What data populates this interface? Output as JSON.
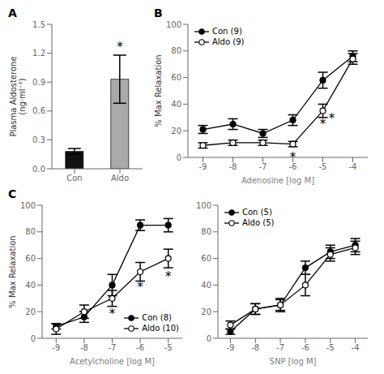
{
  "chart_data": [
    {
      "type": "bar",
      "title": "A",
      "categories": [
        "Con",
        "Aldo"
      ],
      "values": [
        0.18,
        0.93
      ],
      "errors": [
        0.03,
        0.25
      ],
      "colors": [
        "#111111",
        "#aaaaaa"
      ],
      "ylabel": "Plasma Aldosterone\n(ng·ml⁻¹)",
      "ylim": [
        0,
        1.5
      ],
      "yticks": [
        {
          "value": 0,
          "label": "0.0"
        },
        0.3,
        0.6,
        0.9,
        1.2,
        1.5
      ],
      "annotations": [
        {
          "x": "Aldo",
          "y": 1.22,
          "text": "*"
        }
      ]
    },
    {
      "type": "line",
      "title": "B",
      "x": [
        -9,
        -8,
        -7,
        -6,
        -5,
        -4
      ],
      "series": [
        {
          "name": "Con (9)",
          "color": "#000000",
          "marker": "filled_circle",
          "values": [
            21,
            25,
            18,
            28,
            58,
            76
          ],
          "errors": [
            3,
            4,
            3,
            4,
            6,
            4
          ]
        },
        {
          "name": "Aldo (9)",
          "color": "#000000",
          "marker": "open_circle",
          "values": [
            9,
            11,
            11,
            10,
            35,
            74
          ],
          "errors": [
            2,
            2,
            2,
            2,
            5,
            4
          ]
        }
      ],
      "xlabel": "Adenosine [log M]",
      "ylabel": "% Max Relaxation",
      "xlim": [
        -9.5,
        -3.5
      ],
      "xticks": [
        -9,
        -8,
        -7,
        -6,
        -5,
        -4
      ],
      "ylim": [
        0,
        100
      ],
      "yticks": [
        0,
        20,
        40,
        60,
        80,
        100
      ],
      "legend": "upper left",
      "annotations": [
        {
          "x": -6,
          "y": 4,
          "text": "*"
        },
        {
          "x": -5,
          "y": 29,
          "text": "*"
        },
        {
          "x": -4.7,
          "y": 33,
          "text": "*"
        }
      ]
    },
    {
      "type": "line",
      "title": "C",
      "x": [
        -9,
        -8,
        -7,
        -6,
        -5
      ],
      "series": [
        {
          "name": "Con (8)",
          "color": "#000000",
          "marker": "filled_circle",
          "values": [
            9,
            16,
            40,
            85,
            85
          ],
          "errors": [
            2,
            4,
            8,
            4,
            5
          ]
        },
        {
          "name": "Aldo (10)",
          "color": "#000000",
          "marker": "open_circle",
          "values": [
            7,
            20,
            30,
            50,
            60
          ],
          "errors": [
            4,
            5,
            6,
            7,
            7
          ]
        }
      ],
      "xlabel": "Acetylcholine [log M]",
      "ylabel": "% Max Relaxation",
      "xlim": [
        -9.5,
        -4.5
      ],
      "xticks": [
        -9,
        -8,
        -7,
        -6,
        -5
      ],
      "ylim": [
        0,
        100
      ],
      "yticks": [
        0,
        20,
        40,
        60,
        80,
        100
      ],
      "legend": "lower right",
      "annotations": [
        {
          "x": -7,
          "y": 22,
          "text": "*"
        },
        {
          "x": -6,
          "y": 42,
          "text": "*"
        },
        {
          "x": -5,
          "y": 50,
          "text": "*"
        }
      ]
    },
    {
      "type": "line",
      "x": [
        -9,
        -8,
        -7,
        -6,
        -5,
        -4
      ],
      "series": [
        {
          "name": "Con (5)",
          "color": "#000000",
          "marker": "filled_circle",
          "values": [
            5,
            22,
            25,
            53,
            65,
            70
          ],
          "errors": [
            2,
            4,
            4,
            5,
            5,
            5
          ]
        },
        {
          "name": "Aldo (5)",
          "color": "#000000",
          "marker": "open_circle",
          "values": [
            10,
            22,
            25,
            40,
            63,
            68
          ],
          "errors": [
            3,
            4,
            5,
            8,
            5,
            5
          ]
        }
      ],
      "xlabel": "SNP [log M]",
      "xlim": [
        -9.5,
        -3.5
      ],
      "xticks": [
        -9,
        -8,
        -7,
        -6,
        -5,
        -4
      ],
      "ylim": [
        0,
        100
      ],
      "yticks": [
        0,
        20,
        40,
        60,
        80,
        100
      ],
      "legend": "upper left"
    }
  ]
}
